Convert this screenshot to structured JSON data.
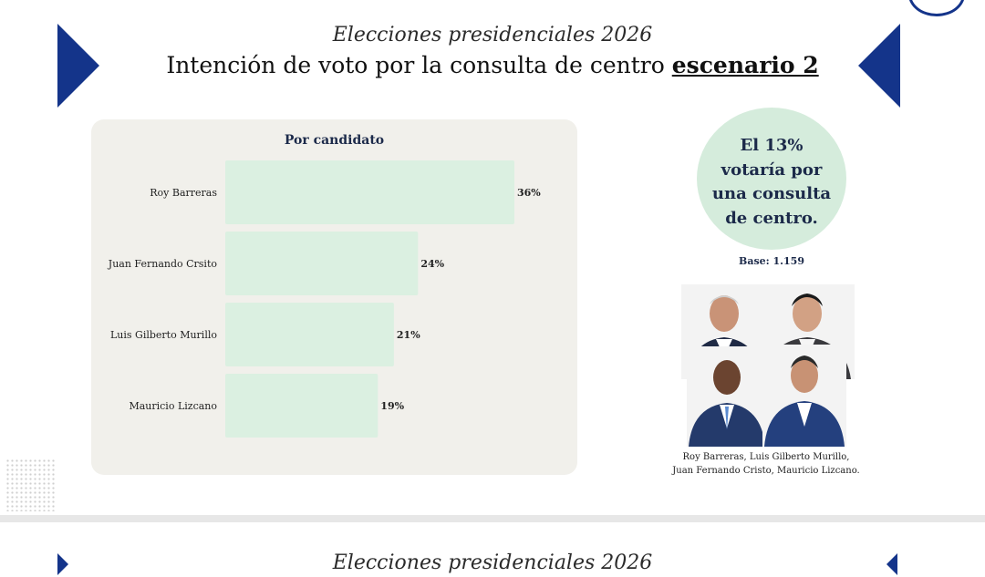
{
  "header": {
    "supertitle": "Elecciones presidenciales 2026",
    "title_main": "Intención de voto por la consulta de centro ",
    "title_highlight": "escenario 2"
  },
  "chart_data": {
    "type": "bar",
    "orientation": "horizontal",
    "title": "Por candidato",
    "categories": [
      "Roy Barreras",
      "Juan Fernando Crsito",
      "Luis Gilberto Murillo",
      "Mauricio Lizcano"
    ],
    "values": [
      36,
      24,
      21,
      19
    ],
    "labels": [
      "36%",
      "24%",
      "21%",
      "19%"
    ],
    "xlim": [
      0,
      36
    ],
    "bar_color": "#dbf0e1",
    "grid": false
  },
  "bubble": {
    "lines": [
      "El 13%",
      "votaría por",
      "una consulta",
      "de centro."
    ],
    "color": "#d5ecdc"
  },
  "base": "Base: 1.159",
  "caption": {
    "line1": "Roy Barreras, Luis Gilberto Murillo,",
    "line2": "Juan Fernando Cristo, Mauricio Lizcano."
  },
  "next_slide": {
    "supertitle": "Elecciones presidenciales 2026"
  },
  "colors": {
    "accent": "#14348a",
    "panel": "#f1f0eb"
  }
}
